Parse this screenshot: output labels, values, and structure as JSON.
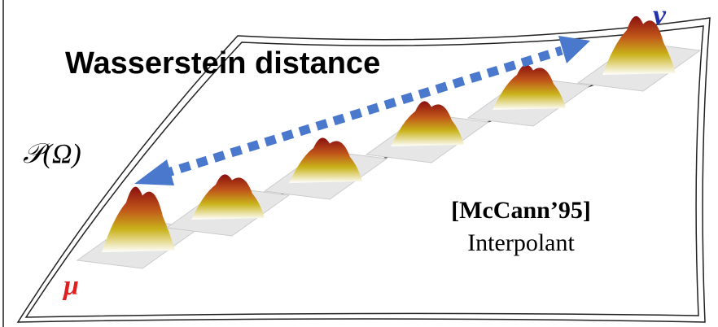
{
  "labels": {
    "title": "Wasserstein distance",
    "space": "𝒫(Ω)",
    "nu": "ν",
    "mu": "μ",
    "citation": "[McCann’95]",
    "method": "Interpolant"
  }
}
